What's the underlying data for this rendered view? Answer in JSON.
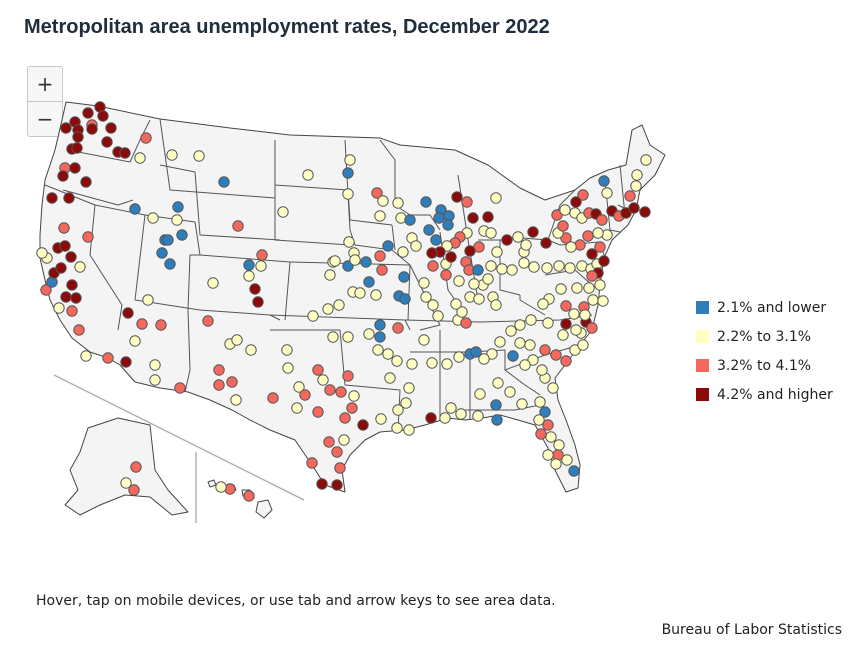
{
  "title": "Metropolitan area unemployment rates, December 2022",
  "zoom": {
    "in_label": "+",
    "out_label": "−"
  },
  "legend": [
    {
      "label": "2.1% and lower",
      "color": "#2f7ebc"
    },
    {
      "label": "2.2% to 3.1%",
      "color": "#ffffc4"
    },
    {
      "label": "3.2% to 4.1%",
      "color": "#f4685e"
    },
    {
      "label": "4.2% and higher",
      "color": "#8b0b0b"
    }
  ],
  "note": "Hover, tap on mobile devices, or use tab and arrow keys to see area data.",
  "source": "Bureau of Labor Statistics"
}
